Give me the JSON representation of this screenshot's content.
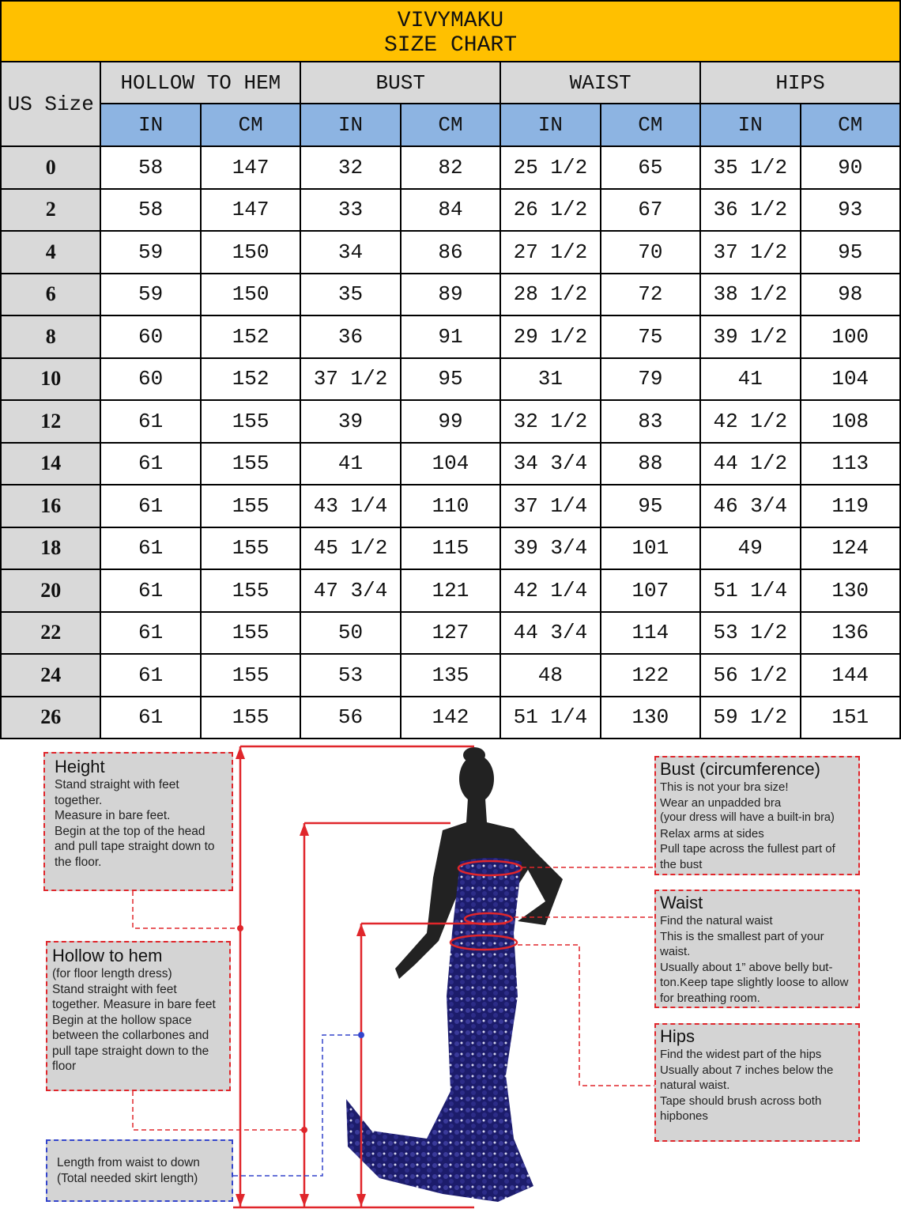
{
  "title": {
    "brand": "VIVYMAKU",
    "subtitle": "SIZE CHART"
  },
  "headers": {
    "size": "US Size",
    "groups": [
      "HOLLOW TO HEM",
      "BUST",
      "WAIST",
      "HIPS"
    ],
    "units": [
      "IN",
      "CM",
      "IN",
      "CM",
      "IN",
      "CM",
      "IN",
      "CM"
    ]
  },
  "rows": [
    [
      "0",
      "58",
      "147",
      "32",
      "82",
      "25 1/2",
      "65",
      "35 1/2",
      "90"
    ],
    [
      "2",
      "58",
      "147",
      "33",
      "84",
      "26 1/2",
      "67",
      "36 1/2",
      "93"
    ],
    [
      "4",
      "59",
      "150",
      "34",
      "86",
      "27 1/2",
      "70",
      "37 1/2",
      "95"
    ],
    [
      "6",
      "59",
      "150",
      "35",
      "89",
      "28 1/2",
      "72",
      "38 1/2",
      "98"
    ],
    [
      "8",
      "60",
      "152",
      "36",
      "91",
      "29 1/2",
      "75",
      "39 1/2",
      "100"
    ],
    [
      "10",
      "60",
      "152",
      "37 1/2",
      "95",
      "31",
      "79",
      "41",
      "104"
    ],
    [
      "12",
      "61",
      "155",
      "39",
      "99",
      "32 1/2",
      "83",
      "42 1/2",
      "108"
    ],
    [
      "14",
      "61",
      "155",
      "41",
      "104",
      "34 3/4",
      "88",
      "44 1/2",
      "113"
    ],
    [
      "16",
      "61",
      "155",
      "43 1/4",
      "110",
      "37 1/4",
      "95",
      "46 3/4",
      "119"
    ],
    [
      "18",
      "61",
      "155",
      "45 1/2",
      "115",
      "39 3/4",
      "101",
      "49",
      "124"
    ],
    [
      "20",
      "61",
      "155",
      "47 3/4",
      "121",
      "42 1/4",
      "107",
      "51 1/4",
      "130"
    ],
    [
      "22",
      "61",
      "155",
      "50",
      "127",
      "44 3/4",
      "114",
      "53 1/2",
      "136"
    ],
    [
      "24",
      "61",
      "155",
      "53",
      "135",
      "48",
      "122",
      "56 1/2",
      "144"
    ],
    [
      "26",
      "61",
      "155",
      "56",
      "142",
      "51 1/4",
      "130",
      "59 1/2",
      "151"
    ]
  ],
  "guide": {
    "height": {
      "title": "Height",
      "lines": [
        "Stand straight with feet together.",
        "Measure in bare feet.",
        "Begin at the top of the head and pull tape straight down to the floor."
      ]
    },
    "hollow": {
      "title": "Hollow to hem",
      "lines": [
        "(for floor length dress)",
        "Stand straight with feet together. Measure in bare feet",
        "Begin at the hollow space between the collarbones and pull tape straight down to the floor"
      ]
    },
    "skirt": {
      "lines": [
        "Length from waist to down",
        "(Total needed skirt length)"
      ]
    },
    "bust": {
      "title": "Bust (circumference)",
      "lines": [
        "This is not your bra size!",
        "Wear an unpadded bra",
        "(your dress will have a built-in bra)",
        "Relax arms at sides",
        "Pull tape across the fullest part of the bust"
      ]
    },
    "waist": {
      "title": "Waist",
      "lines": [
        "Find the natural waist",
        "This is the smallest part of your waist.",
        "Usually about 1” above belly but-ton.Keep tape slightly loose to allow for breathing room."
      ]
    },
    "hips": {
      "title": "Hips",
      "lines": [
        "Find the widest part of the hips",
        "Usually about 7 inches below the natural waist.",
        "Tape should brush across both hipbones"
      ]
    }
  },
  "colors": {
    "title_bg": "#FFC000",
    "group_bg": "#D9D9D9",
    "unit_bg": "#8DB4E2",
    "measure_line": "#E0262B",
    "skirt_line": "#3344CC",
    "dress": "#1C1C6B"
  }
}
